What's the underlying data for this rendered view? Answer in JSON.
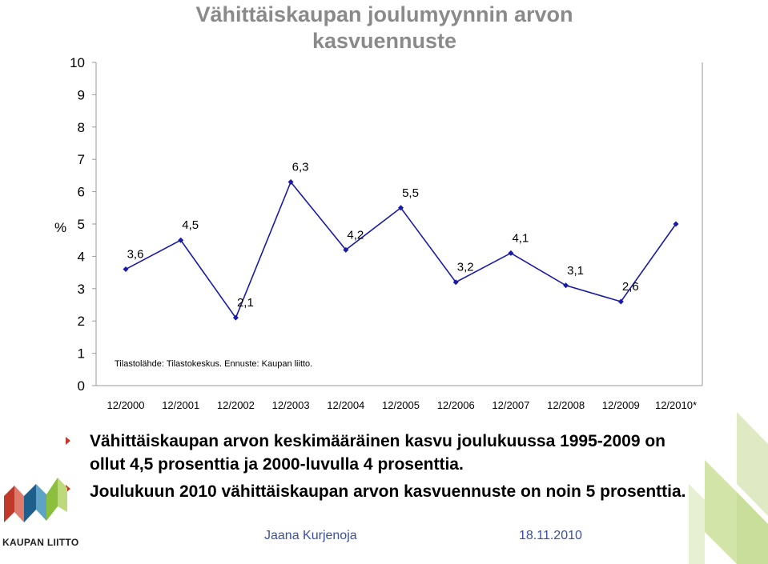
{
  "title_line1": "Vähittäiskaupan joulumyynnin arvon",
  "title_line2": "kasvuennuste",
  "chart_data": {
    "type": "line",
    "categories": [
      "12/2000",
      "12/2001",
      "12/2002",
      "12/2003",
      "12/2004",
      "12/2005",
      "12/2006",
      "12/2007",
      "12/2008",
      "12/2009",
      "12/2010*"
    ],
    "values": [
      3.6,
      4.5,
      2.1,
      6.3,
      4.2,
      5.5,
      3.2,
      4.1,
      3.1,
      2.6,
      5.0
    ],
    "data_labels": [
      "3,6",
      "4,5",
      "2,1",
      "6,3",
      "4,2",
      "5,5",
      "3,2",
      "4,1",
      "3,1",
      "2,6",
      ""
    ],
    "y_ticks": [
      "0",
      "1",
      "2",
      "3",
      "4",
      "5",
      "6",
      "7",
      "8",
      "9",
      "10"
    ],
    "ylim": [
      0,
      10
    ],
    "ylabel": "%",
    "source_note": "Tilastolähde: Tilastokeskus. Ennuste: Kaupan liitto.",
    "line_color": "#1a1aa8",
    "grid": false
  },
  "bullets": [
    "Vähittäiskaupan arvon keskimääräinen kasvu joulukuussa 1995-2009 on ollut 4,5 prosenttia ja 2000-luvulla 4 prosenttia.",
    "Joulukuun 2010 vähittäiskaupan arvon kasvuennuste on noin 5 prosenttia."
  ],
  "footer": {
    "author": "Jaana Kurjenoja",
    "date": "18.11.2010"
  },
  "logo": {
    "text": "KAUPAN LIITTO",
    "icon": "kaupan-liitto-logo-icon"
  },
  "colors": {
    "title": "#8a8a8a",
    "bullet": "#c0392b",
    "footer": "#3a4fa0",
    "logo_red": "#c0392b",
    "logo_green": "#8dbf3f",
    "logo_blue": "#1f5f8b",
    "deco_green": "#c9de9a"
  }
}
